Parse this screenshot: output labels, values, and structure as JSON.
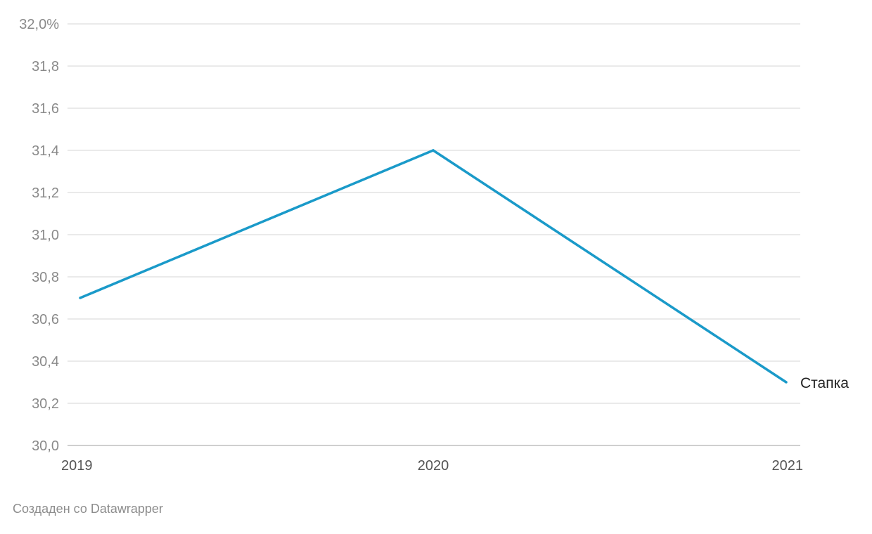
{
  "chart_data": {
    "type": "line",
    "title": "",
    "xlabel": "",
    "ylabel": "",
    "x": [
      "2019",
      "2020",
      "2021"
    ],
    "series": [
      {
        "name": "Стапка",
        "values": [
          30.7,
          31.4,
          30.3
        ],
        "color": "#1a9ac9"
      }
    ],
    "ylim": [
      30.0,
      32.0
    ],
    "yticks": [
      30.0,
      30.2,
      30.4,
      30.6,
      30.8,
      31.0,
      31.2,
      31.4,
      31.6,
      31.8,
      32.0
    ],
    "ytick_labels": [
      "30,0",
      "30,2",
      "30,4",
      "30,6",
      "30,8",
      "31,0",
      "31,2",
      "31,4",
      "31,6",
      "31,8",
      "32,0%"
    ],
    "grid": true,
    "legend": "none; series name labels the end of the line"
  },
  "footer": {
    "credit": "Создаден со Datawrapper"
  }
}
